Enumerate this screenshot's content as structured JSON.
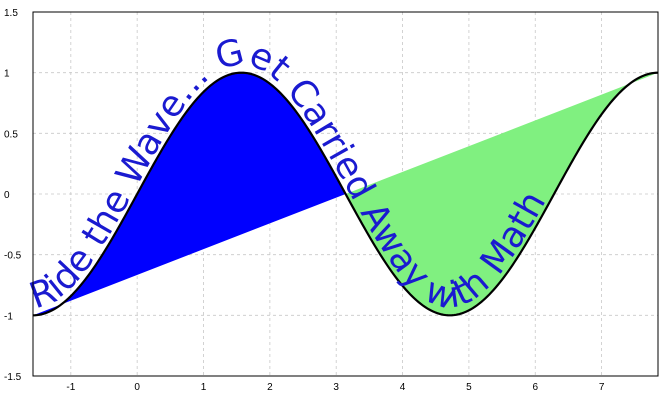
{
  "chart_data": {
    "type": "area",
    "title": "",
    "xlabel": "",
    "ylabel": "",
    "xlim": [
      -1.57,
      7.85
    ],
    "ylim": [
      -1.5,
      1.5
    ],
    "x_ticks": [
      "-1",
      "0",
      "1",
      "2",
      "3",
      "4",
      "5",
      "6",
      "7"
    ],
    "y_ticks": [
      "1.5",
      "1",
      "0.5",
      "0",
      "-0.5",
      "-1",
      "-1.5"
    ],
    "grid": true,
    "curve": {
      "function": "sin",
      "x_start": -1.5708,
      "x_end": 7.854,
      "color": "#000000"
    },
    "filled_regions": [
      {
        "name": "",
        "color": "#0000ff",
        "chord_start": [
          -1.5708,
          -1
        ],
        "chord_end": [
          3.1416,
          0
        ]
      },
      {
        "name": "",
        "color": "#80f080",
        "chord_start": [
          3.1416,
          0
        ],
        "chord_end": [
          7.854,
          1
        ]
      }
    ],
    "curve_text": "Ride the Wave... Get Carried Away with Math",
    "curve_text_color": "#1a1ad0"
  }
}
